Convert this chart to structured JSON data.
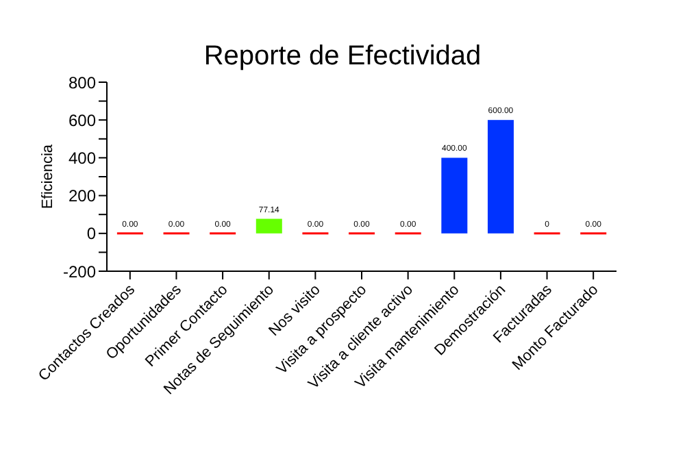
{
  "chart_data": {
    "type": "bar",
    "title": "Reporte de Efectividad",
    "ylabel": "Eficiencia",
    "categories": [
      "Contactos Creados",
      "Oportunidades",
      "Primer Contacto",
      "Notas de Seguimiento",
      "Nos visito",
      "Visita a prospecto",
      "Visita a cliente activo",
      "Visita mantenimiento",
      "Demostración",
      "Facturadas",
      "Monto Facturado"
    ],
    "values": [
      0,
      0,
      0,
      77.14,
      0,
      0,
      0,
      400,
      600,
      0,
      0
    ],
    "colors": [
      "#ff0000",
      "#ff0000",
      "#ff0000",
      "#66ff00",
      "#ff0000",
      "#ff0000",
      "#ff0000",
      "#0033ff",
      "#0033ff",
      "#ff0000",
      "#ff0000"
    ],
    "value_labels": [
      "0.00",
      "0.00",
      "0.00",
      "77.14",
      "0.00",
      "0.00",
      "0.00",
      "400.00",
      "600.00",
      "0",
      "0.00"
    ],
    "ylim": [
      -200,
      800
    ],
    "yticks": [
      -200,
      {
        "value": -100,
        "label": null
      },
      0,
      {
        "value": 100,
        "label": null
      },
      200,
      {
        "value": 300,
        "label": null
      },
      400,
      {
        "value": 500,
        "label": null
      },
      600,
      {
        "value": 700,
        "label": null
      },
      800
    ],
    "grid": false
  }
}
